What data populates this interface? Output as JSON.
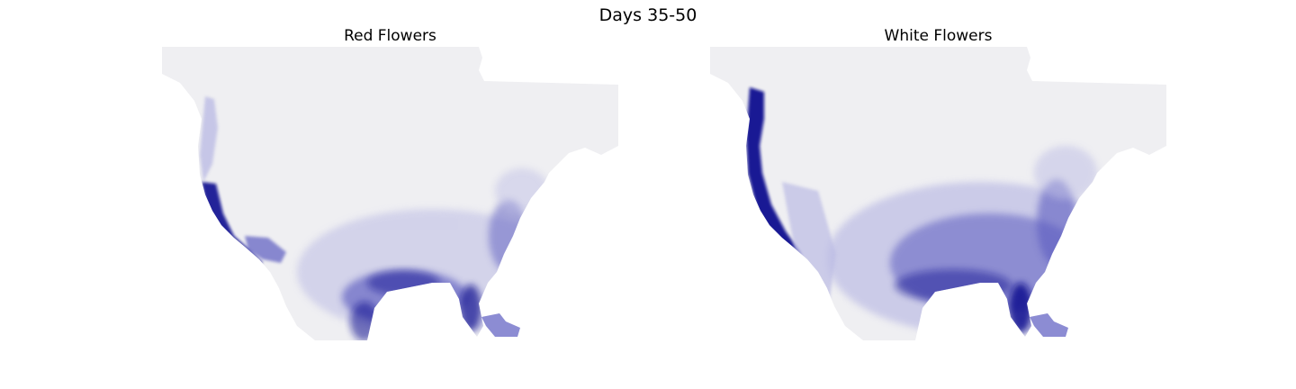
{
  "figure": {
    "title": "Days 35-50",
    "colors": {
      "land": "#efeff2",
      "water": "#ffffff",
      "high": "#0b0b8f",
      "mid": "#5b5bc0",
      "low": "#bcbce4"
    }
  },
  "panels": [
    {
      "id": "red",
      "title": "Red Flowers"
    },
    {
      "id": "white",
      "title": "White Flowers"
    }
  ]
}
